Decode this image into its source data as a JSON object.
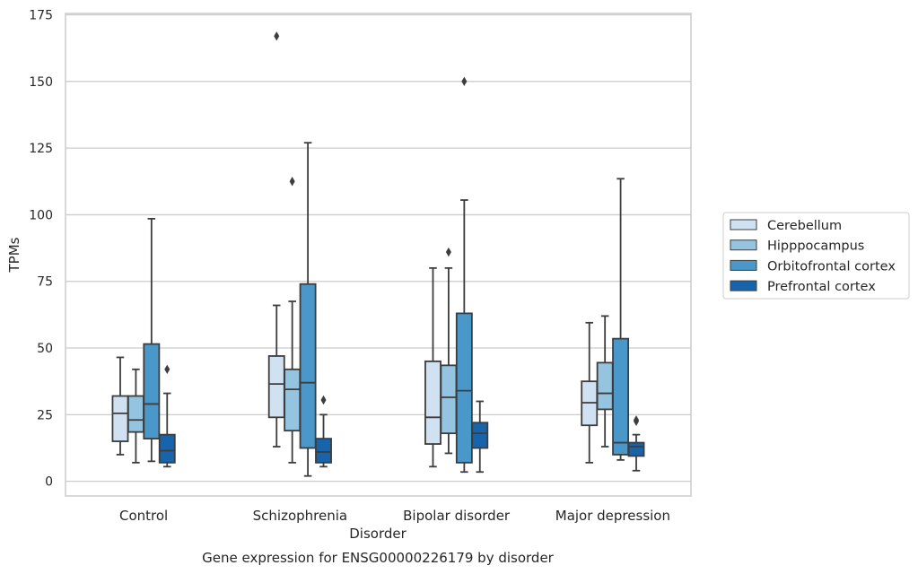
{
  "chart_data": {
    "type": "box",
    "title": "",
    "xlabel": "Disorder",
    "ylabel": "TPMs",
    "caption": "Gene expression for ENSG00000226179 by disorder",
    "ylim": [
      -5.5,
      175.5
    ],
    "yticks": [
      "0",
      "25",
      "50",
      "75",
      "100",
      "125",
      "150",
      "175"
    ],
    "ytick_values": [
      0,
      25,
      50,
      75,
      100,
      125,
      150,
      175
    ],
    "grid": "horizontal",
    "legend_position": "right",
    "categories": [
      "Control",
      "Schizophrenia",
      "Bipolar disorder",
      "Major depression"
    ],
    "series": [
      {
        "name": "Cerebellum",
        "color": "#d0e1f2",
        "boxes": [
          {
            "whisker_low": 10,
            "q1": 15,
            "median": 25.5,
            "q3": 32,
            "whisker_high": 46.5,
            "outliers": []
          },
          {
            "whisker_low": 13,
            "q1": 24,
            "median": 36.5,
            "q3": 47,
            "whisker_high": 66,
            "outliers": [
              167
            ]
          },
          {
            "whisker_low": 5.5,
            "q1": 14,
            "median": 24,
            "q3": 45,
            "whisker_high": 80,
            "outliers": []
          },
          {
            "whisker_low": 7,
            "q1": 21,
            "median": 29.5,
            "q3": 37.5,
            "whisker_high": 59.5,
            "outliers": []
          }
        ]
      },
      {
        "name": "Hipppocampus",
        "color": "#94c4df",
        "boxes": [
          {
            "whisker_low": 7,
            "q1": 18.5,
            "median": 23,
            "q3": 32,
            "whisker_high": 42,
            "outliers": []
          },
          {
            "whisker_low": 7,
            "q1": 19,
            "median": 34.5,
            "q3": 42,
            "whisker_high": 67.5,
            "outliers": [
              112.5
            ]
          },
          {
            "whisker_low": 10.5,
            "q1": 18,
            "median": 31.5,
            "q3": 43.5,
            "whisker_high": 80,
            "outliers": [
              86
            ]
          },
          {
            "whisker_low": 13,
            "q1": 27,
            "median": 33,
            "q3": 44.5,
            "whisker_high": 62,
            "outliers": []
          }
        ]
      },
      {
        "name": "Orbitofrontal cortex",
        "color": "#4a98c9",
        "boxes": [
          {
            "whisker_low": 7.5,
            "q1": 16,
            "median": 29,
            "q3": 51.5,
            "whisker_high": 98.5,
            "outliers": []
          },
          {
            "whisker_low": 2,
            "q1": 12.5,
            "median": 37,
            "q3": 74,
            "whisker_high": 127,
            "outliers": []
          },
          {
            "whisker_low": 3.5,
            "q1": 7,
            "median": 34,
            "q3": 63,
            "whisker_high": 105.5,
            "outliers": [
              150
            ]
          },
          {
            "whisker_low": 8,
            "q1": 10,
            "median": 14.5,
            "q3": 53.5,
            "whisker_high": 113.5,
            "outliers": []
          }
        ]
      },
      {
        "name": "Prefrontal cortex",
        "color": "#1764ab",
        "boxes": [
          {
            "whisker_low": 5.5,
            "q1": 7,
            "median": 11.5,
            "q3": 17.5,
            "whisker_high": 33,
            "outliers": [
              42
            ]
          },
          {
            "whisker_low": 5.5,
            "q1": 7,
            "median": 11,
            "q3": 16,
            "whisker_high": 25,
            "outliers": [
              30.5
            ]
          },
          {
            "whisker_low": 3.5,
            "q1": 12.5,
            "median": 18,
            "q3": 22,
            "whisker_high": 30,
            "outliers": []
          },
          {
            "whisker_low": 4,
            "q1": 9.5,
            "median": 13,
            "q3": 14.5,
            "whisker_high": 17.5,
            "outliers": [
              22.5,
              23
            ]
          }
        ]
      }
    ]
  }
}
